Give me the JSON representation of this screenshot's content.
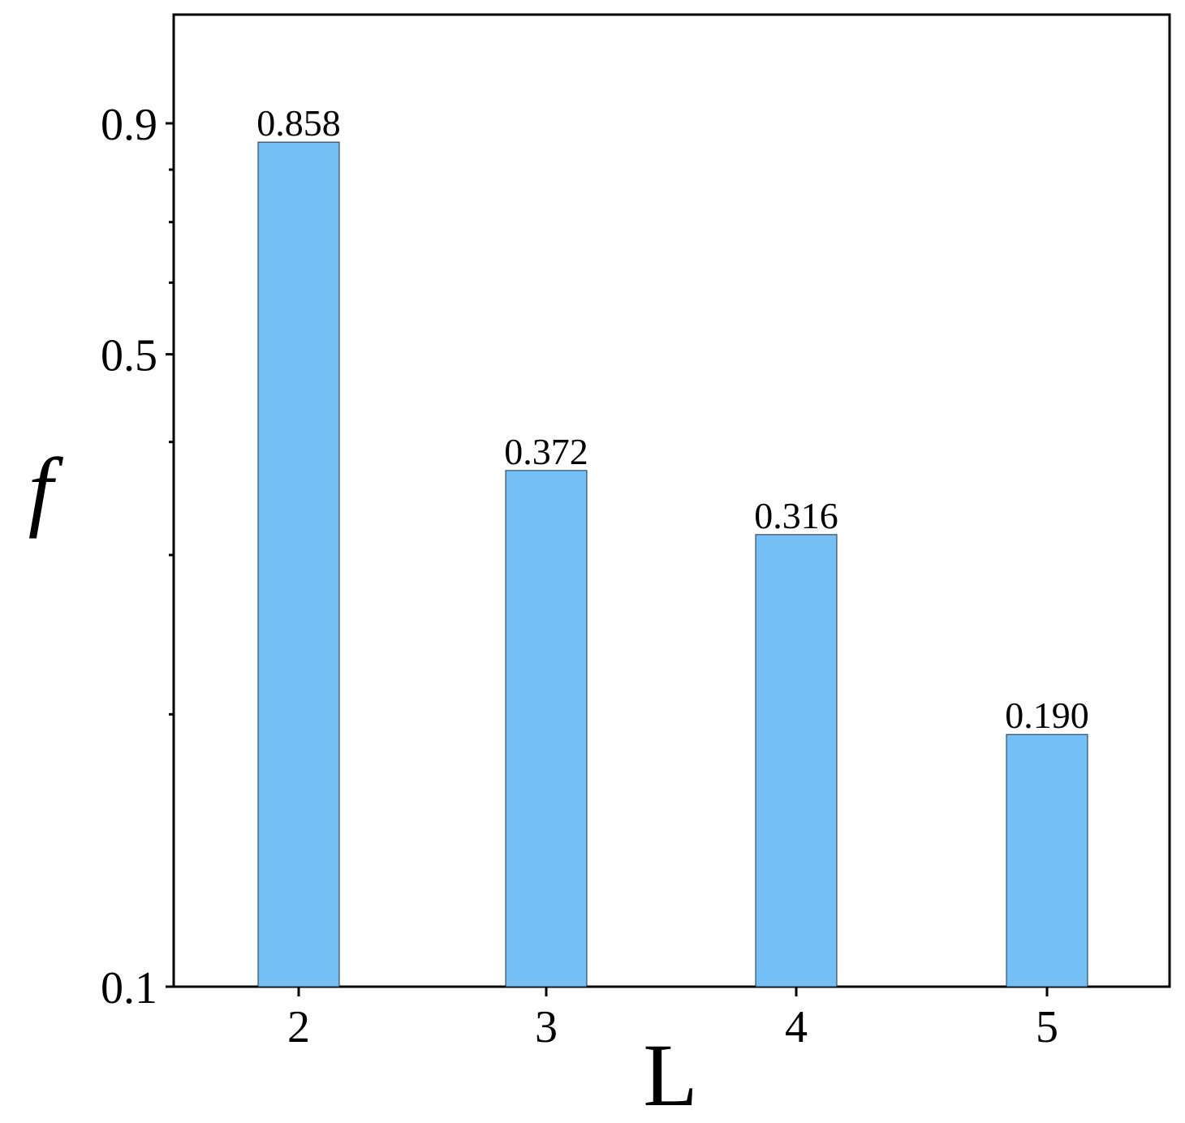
{
  "chart_data": {
    "type": "bar",
    "categories": [
      "2",
      "3",
      "4",
      "5"
    ],
    "values": [
      0.858,
      0.372,
      0.316,
      0.19
    ],
    "data_labels": [
      "0.858",
      "0.372",
      "0.316",
      "0.190"
    ],
    "title": "",
    "xlabel": "L",
    "ylabel": "f",
    "ylim": [
      0.1,
      1.0
    ],
    "yscale": "log",
    "yticks": [
      {
        "value": 0.1,
        "label": "0.1"
      },
      {
        "value": 0.5,
        "label": "0.5"
      },
      {
        "value": 0.9,
        "label": "0.9"
      }
    ],
    "yminor_ticks": [
      0.2,
      0.3,
      0.4,
      0.6,
      0.7,
      0.8
    ],
    "grid": false,
    "legend": "none",
    "colors": {
      "bar_fill": "#74c0f6",
      "bar_stroke": "#1f2f3f",
      "axis": "#000000"
    }
  }
}
